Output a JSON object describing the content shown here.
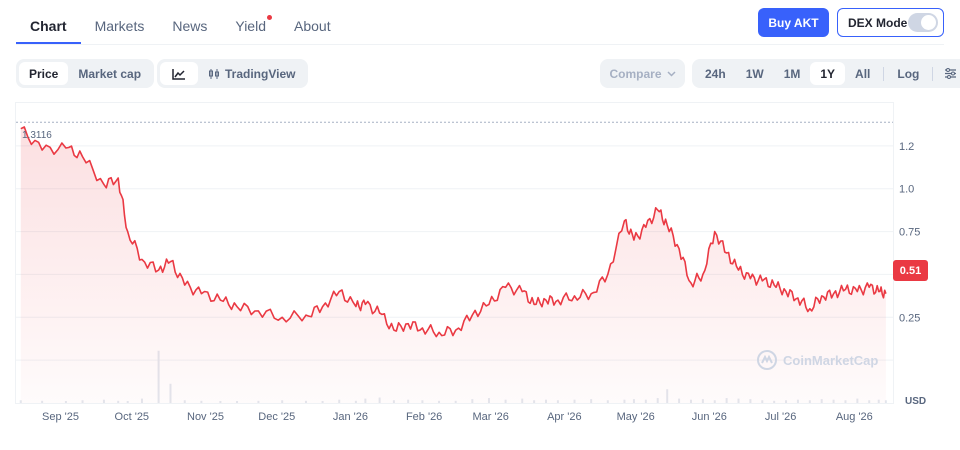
{
  "nav": {
    "tabs": [
      {
        "label": "Chart",
        "active": true
      },
      {
        "label": "Markets"
      },
      {
        "label": "News"
      },
      {
        "label": "Yield",
        "dot": true
      },
      {
        "label": "About"
      }
    ],
    "buy_label": "Buy AKT",
    "dex_label": "DEX Mode"
  },
  "toolbar": {
    "price_label": "Price",
    "marketcap_label": "Market cap",
    "tradingview_label": "TradingView",
    "compare_label": "Compare",
    "ranges": [
      "24h",
      "1W",
      "1M",
      "1Y",
      "All"
    ],
    "active_range": "1Y",
    "log_label": "Log"
  },
  "chart": {
    "max_label": "1.3116",
    "current_price": "0.51",
    "currency": "USD",
    "watermark": "CoinMarketCap",
    "accent_color": "#ea3943",
    "fill_color": "#ea3943"
  },
  "chart_data": {
    "type": "area",
    "y_ticks": [
      "1.2",
      "1.0",
      "0.75",
      "0.25"
    ],
    "x_ticks": [
      "Sep '25",
      "Oct '25",
      "Nov '25",
      "Dec '25",
      "Jan '26",
      "Feb '26",
      "Mar '26",
      "Apr '26",
      "May '26",
      "Jun '26",
      "Jul '26",
      "Aug '26"
    ],
    "ylim": [
      0,
      1.4
    ],
    "x": [
      "2025-08-30",
      "2025-09-08",
      "2025-09-18",
      "2025-09-25",
      "2025-10-04",
      "2025-10-10",
      "2025-10-14",
      "2025-10-20",
      "2025-10-27",
      "2025-11-01",
      "2025-11-07",
      "2025-11-14",
      "2025-11-22",
      "2025-11-29",
      "2025-12-08",
      "2025-12-18",
      "2025-12-28",
      "2026-01-04",
      "2026-01-11",
      "2026-01-18",
      "2026-01-22",
      "2026-01-28",
      "2026-02-03",
      "2026-02-09",
      "2026-02-15",
      "2026-02-22",
      "2026-03-01",
      "2026-03-08",
      "2026-03-15",
      "2026-03-22",
      "2026-03-29",
      "2026-04-03",
      "2026-04-08",
      "2026-04-13",
      "2026-04-20",
      "2026-04-27",
      "2026-05-04",
      "2026-05-11",
      "2026-05-15",
      "2026-05-20",
      "2026-05-25",
      "2026-05-29",
      "2026-06-03",
      "2026-06-08",
      "2026-06-13",
      "2026-06-18",
      "2026-06-23",
      "2026-06-28",
      "2026-07-03",
      "2026-07-08",
      "2026-07-13",
      "2026-07-18",
      "2026-07-23",
      "2026-07-28",
      "2026-08-02",
      "2026-08-07",
      "2026-08-12",
      "2026-08-17",
      "2026-08-22",
      "2026-08-26",
      "2026-08-29"
    ],
    "y": [
      1.28,
      1.18,
      1.19,
      1.15,
      1.02,
      1.05,
      0.8,
      0.67,
      0.62,
      0.66,
      0.55,
      0.51,
      0.48,
      0.45,
      0.43,
      0.4,
      0.41,
      0.45,
      0.52,
      0.45,
      0.46,
      0.42,
      0.34,
      0.37,
      0.35,
      0.33,
      0.34,
      0.41,
      0.46,
      0.54,
      0.52,
      0.46,
      0.48,
      0.48,
      0.5,
      0.51,
      0.6,
      0.85,
      0.76,
      0.82,
      0.9,
      0.83,
      0.72,
      0.56,
      0.6,
      0.8,
      0.7,
      0.62,
      0.58,
      0.57,
      0.55,
      0.52,
      0.49,
      0.44,
      0.5,
      0.51,
      0.53,
      0.52,
      0.54,
      0.52,
      0.51
    ],
    "volume": [
      0.05,
      0.04,
      0.03,
      0.05,
      0.06,
      0.04,
      0.03,
      0.08,
      0.95,
      0.35,
      0.05,
      0.04,
      0.03,
      0.03,
      0.04,
      0.05,
      0.04,
      0.03,
      0.06,
      0.04,
      0.08,
      0.1,
      0.05,
      0.06,
      0.05,
      0.04,
      0.04,
      0.07,
      0.09,
      0.06,
      0.08,
      0.05,
      0.06,
      0.05,
      0.06,
      0.07,
      0.05,
      0.06,
      0.07,
      0.06,
      0.09,
      0.25,
      0.08,
      0.06,
      0.07,
      0.05,
      0.09,
      0.08,
      0.07,
      0.05,
      0.04,
      0.05,
      0.06,
      0.05,
      0.07,
      0.06,
      0.05,
      0.08,
      0.05,
      0.06,
      0.05
    ]
  }
}
